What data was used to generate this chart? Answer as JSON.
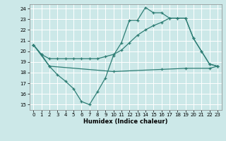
{
  "xlabel": "Humidex (Indice chaleur)",
  "xlim": [
    -0.5,
    23.5
  ],
  "ylim": [
    14.5,
    24.4
  ],
  "yticks": [
    15,
    16,
    17,
    18,
    19,
    20,
    21,
    22,
    23,
    24
  ],
  "xticks": [
    0,
    1,
    2,
    3,
    4,
    5,
    6,
    7,
    8,
    9,
    10,
    11,
    12,
    13,
    14,
    15,
    16,
    17,
    18,
    19,
    20,
    21,
    22,
    23
  ],
  "bg_color": "#cce8e8",
  "line_color": "#2d7d74",
  "grid_color": "#ffffff",
  "line1_x": [
    0,
    1,
    2,
    3,
    4,
    5,
    6,
    7,
    8,
    9,
    10,
    11,
    12,
    13,
    14,
    15,
    16,
    17,
    18,
    19,
    20,
    21,
    22,
    23
  ],
  "line1_y": [
    20.6,
    19.7,
    18.6,
    17.8,
    17.2,
    16.5,
    15.3,
    15.0,
    16.2,
    17.5,
    19.6,
    20.8,
    22.9,
    22.9,
    24.1,
    23.6,
    23.6,
    23.1,
    23.1,
    23.1,
    21.2,
    20.0,
    18.8,
    18.6
  ],
  "line2_x": [
    0,
    1,
    2,
    3,
    4,
    5,
    6,
    7,
    8,
    9,
    10,
    11,
    12,
    13,
    14,
    15,
    16,
    17,
    18,
    19,
    20,
    21,
    22,
    23
  ],
  "line2_y": [
    20.6,
    19.7,
    19.3,
    19.3,
    19.3,
    19.3,
    19.3,
    19.3,
    19.3,
    19.5,
    19.7,
    20.1,
    20.8,
    21.5,
    22.0,
    22.4,
    22.7,
    23.1,
    23.1,
    23.1,
    21.2,
    20.0,
    18.8,
    18.6
  ],
  "line3_x": [
    0,
    2,
    10,
    16,
    19,
    22,
    23
  ],
  "line3_y": [
    20.6,
    18.6,
    18.1,
    18.3,
    18.4,
    18.4,
    18.6
  ]
}
